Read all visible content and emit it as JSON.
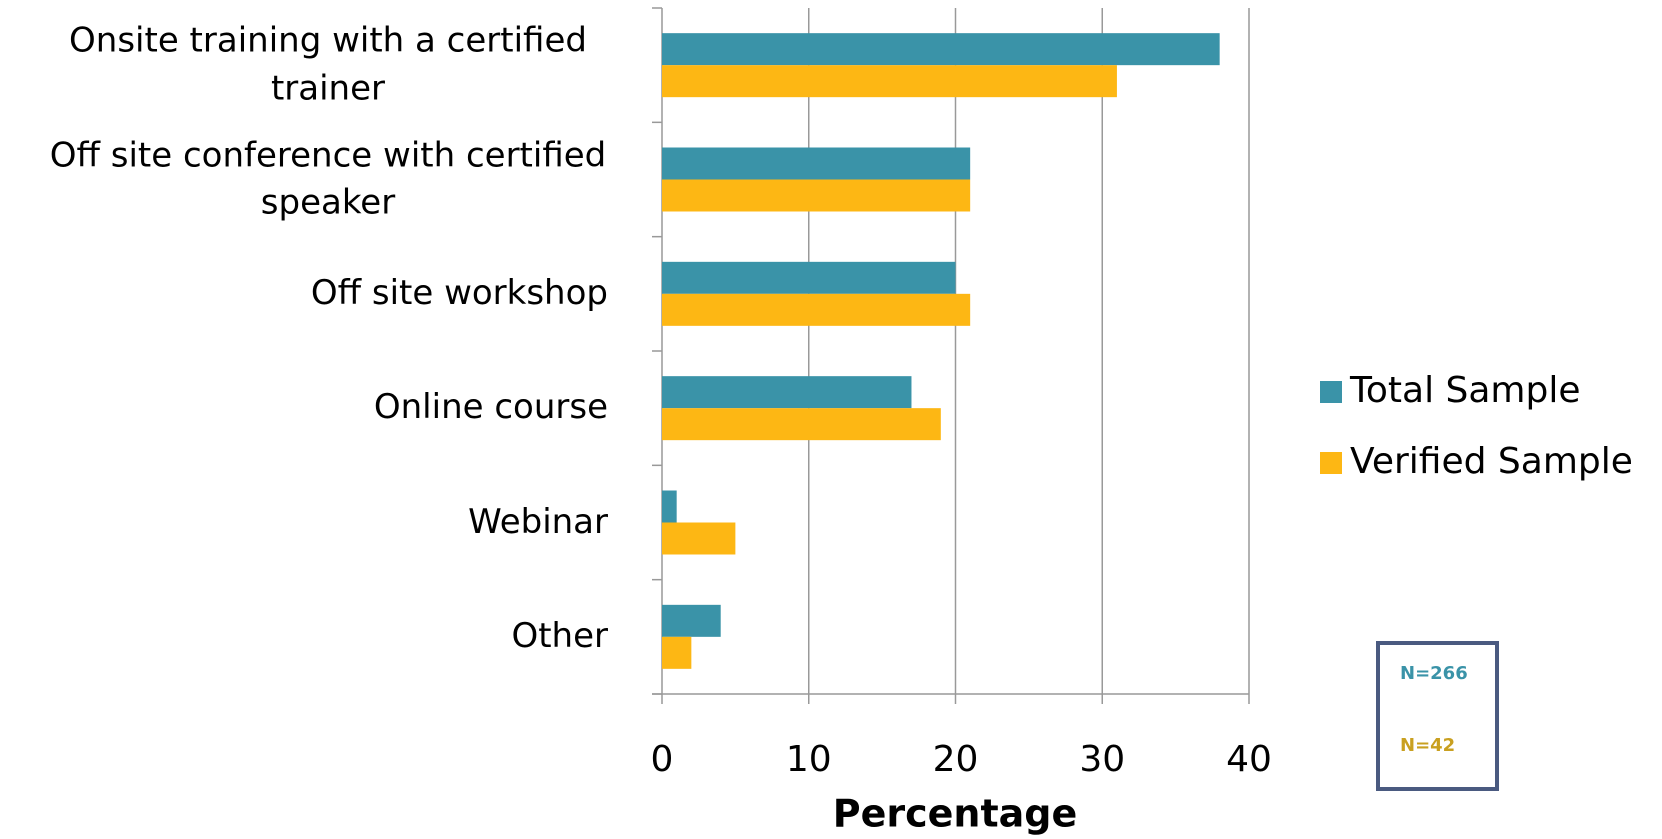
{
  "chart_data": {
    "type": "bar",
    "orientation": "horizontal",
    "categories": [
      "Onsite training with a certified trainer",
      "Off site conference with certified speaker",
      "Off site workshop",
      "Online course",
      "Webinar",
      "Other"
    ],
    "series": [
      {
        "name": "Total Sample",
        "color": "#3a93a8",
        "values": [
          38,
          21,
          20,
          17,
          1,
          4
        ]
      },
      {
        "name": "Verified Sample",
        "color": "#fdb714",
        "values": [
          31,
          21,
          21,
          19,
          5,
          2
        ]
      }
    ],
    "xlabel": "Percentage",
    "xlim": [
      0,
      40
    ],
    "xticks": [
      0,
      10,
      20,
      30,
      40
    ],
    "grid": true,
    "legend": "right",
    "annotations": [
      {
        "text": "N=266",
        "color": "#3a93a8"
      },
      {
        "text": "N=42",
        "color": "#c9a020"
      }
    ]
  }
}
